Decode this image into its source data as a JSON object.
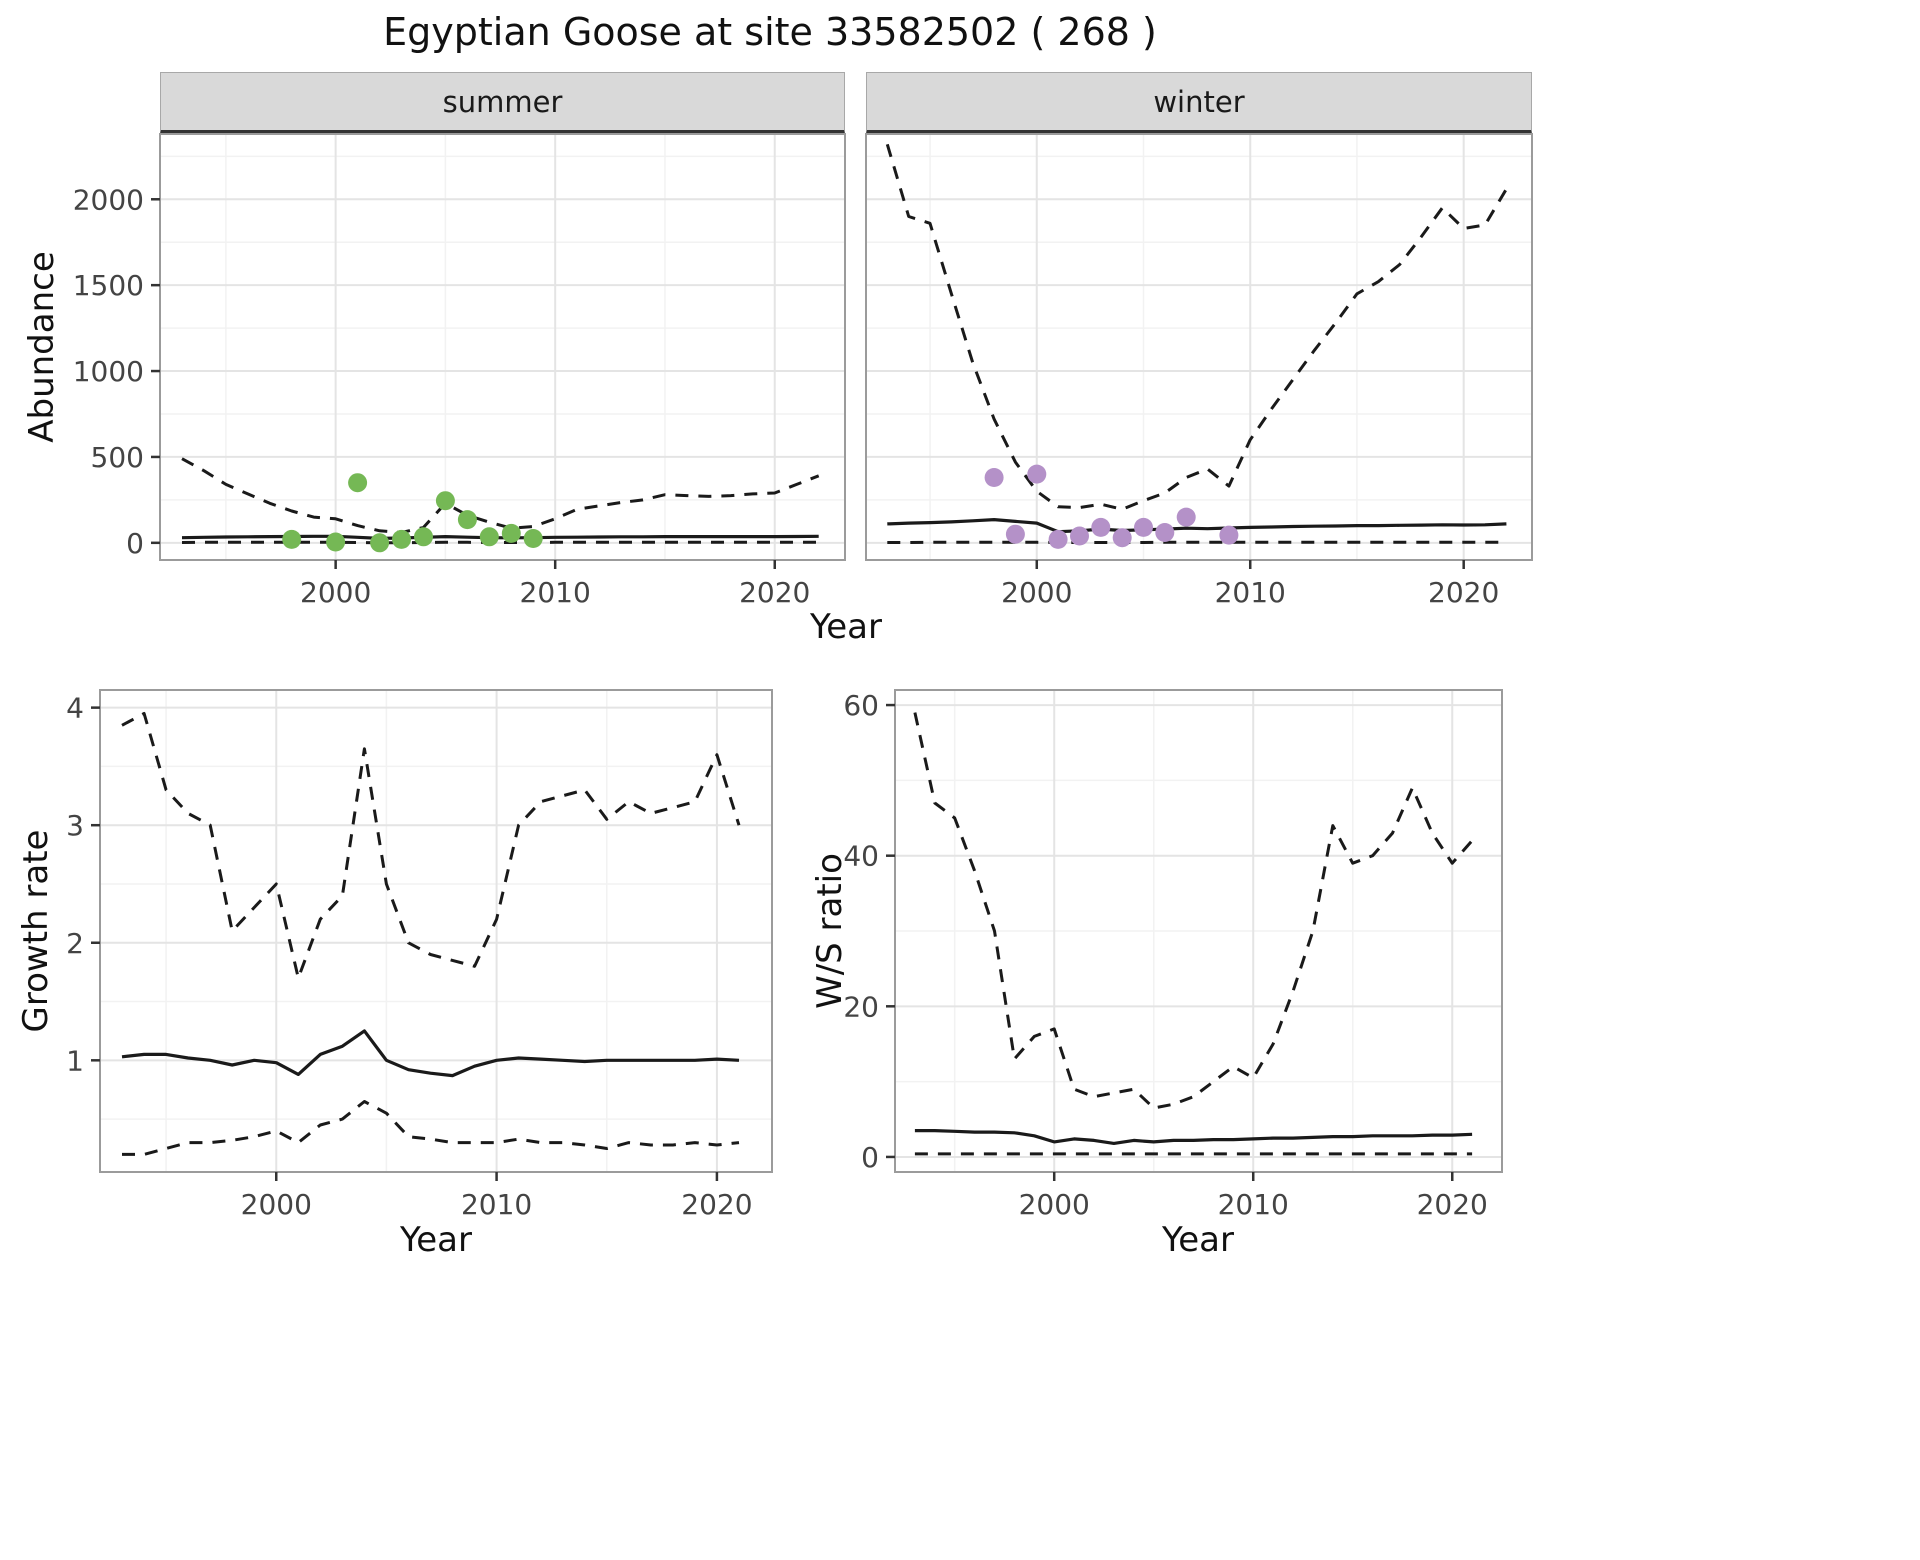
{
  "title": "Egyptian Goose at site 33582502 ( 268 )",
  "colors": {
    "line": "#1a1a1a",
    "grid_major": "#e4e4e4",
    "grid_minor": "#f2f2f2",
    "panel_border": "#9b9b9b",
    "tick_mark": "#333333",
    "strip_background": "#d9d9d9",
    "strip_underline": "#333333",
    "summer_points": "#75b855",
    "winter_points": "#b491c8"
  },
  "chart_data": [
    {
      "type": "line",
      "name": "abundance_by_season",
      "xlabel": "Year",
      "ylabel": "Abundance",
      "x": [
        1993,
        1994,
        1995,
        1996,
        1997,
        1998,
        1999,
        2000,
        2001,
        2002,
        2003,
        2004,
        2005,
        2006,
        2007,
        2008,
        2009,
        2010,
        2011,
        2012,
        2013,
        2014,
        2015,
        2016,
        2017,
        2018,
        2019,
        2020,
        2021,
        2022
      ],
      "xlim": [
        1992,
        2023.2
      ],
      "ylim": [
        -100,
        2380
      ],
      "xticks": [
        2000,
        2010,
        2020
      ],
      "yticks": [
        0,
        500,
        1000,
        1500,
        2000
      ],
      "grid": true,
      "legend": "none",
      "panels": [
        {
          "facet": "summer",
          "point_color": "#75b855",
          "series": [
            {
              "name": "upper_ci",
              "style": "dashed",
              "values": [
                490,
                420,
                340,
                285,
                230,
                185,
                150,
                140,
                100,
                70,
                60,
                90,
                230,
                160,
                120,
                85,
                95,
                140,
                195,
                215,
                235,
                250,
                280,
                275,
                270,
                275,
                285,
                290,
                340,
                390
              ]
            },
            {
              "name": "median",
              "style": "solid",
              "values": [
                30,
                32,
                34,
                35,
                36,
                37,
                38,
                38,
                32,
                26,
                28,
                32,
                36,
                33,
                30,
                29,
                30,
                32,
                33,
                34,
                35,
                35,
                36,
                36,
                36,
                36,
                36,
                36,
                37,
                38
              ]
            },
            {
              "name": "lower_ci",
              "style": "dashed",
              "values": [
                2,
                3,
                3,
                3,
                3,
                3,
                3,
                3,
                2,
                1,
                1,
                2,
                3,
                3,
                2,
                2,
                2,
                3,
                3,
                3,
                3,
                3,
                3,
                3,
                3,
                3,
                3,
                3,
                3,
                3
              ]
            }
          ],
          "points": {
            "name": "observed_counts",
            "x": [
              1998,
              2000,
              2001,
              2002,
              2003,
              2004,
              2005,
              2006,
              2007,
              2008,
              2009
            ],
            "y": [
              20,
              5,
              350,
              0,
              20,
              35,
              245,
              135,
              35,
              55,
              25
            ]
          }
        },
        {
          "facet": "winter",
          "point_color": "#b491c8",
          "series": [
            {
              "name": "upper_ci",
              "style": "dashed",
              "values": [
                2320,
                1900,
                1860,
                1450,
                1050,
                720,
                470,
                300,
                210,
                205,
                225,
                195,
                245,
                290,
                380,
                430,
                330,
                600,
                780,
                950,
                1120,
                1280,
                1450,
                1520,
                1620,
                1780,
                1950,
                1830,
                1850,
                2060
              ]
            },
            {
              "name": "median",
              "style": "solid",
              "values": [
                110,
                115,
                118,
                122,
                128,
                135,
                125,
                115,
                65,
                70,
                80,
                72,
                76,
                80,
                85,
                82,
                86,
                90,
                92,
                95,
                97,
                98,
                100,
                100,
                102,
                103,
                105,
                104,
                105,
                110
              ]
            },
            {
              "name": "lower_ci",
              "style": "dashed",
              "values": [
                2,
                2,
                3,
                3,
                3,
                3,
                3,
                3,
                2,
                2,
                2,
                2,
                2,
                3,
                3,
                3,
                3,
                3,
                3,
                3,
                3,
                3,
                3,
                3,
                3,
                3,
                3,
                3,
                3,
                3
              ]
            }
          ],
          "points": {
            "name": "observed_counts",
            "x": [
              1998,
              1999,
              2000,
              2001,
              2002,
              2003,
              2004,
              2005,
              2006,
              2007,
              2009
            ],
            "y": [
              380,
              50,
              400,
              20,
              40,
              90,
              30,
              90,
              60,
              150,
              45
            ]
          }
        }
      ]
    },
    {
      "type": "line",
      "name": "growth_rate",
      "xlabel": "Year",
      "ylabel": "Growth rate",
      "x": [
        1993,
        1994,
        1995,
        1996,
        1997,
        1998,
        1999,
        2000,
        2001,
        2002,
        2003,
        2004,
        2005,
        2006,
        2007,
        2008,
        2009,
        2010,
        2011,
        2012,
        2013,
        2014,
        2015,
        2016,
        2017,
        2018,
        2019,
        2020,
        2021
      ],
      "xlim": [
        1992,
        2022.5
      ],
      "ylim": [
        0.05,
        4.15
      ],
      "xticks": [
        2000,
        2010,
        2020
      ],
      "yticks": [
        1,
        2,
        3,
        4
      ],
      "grid": true,
      "legend": "none",
      "series": [
        {
          "name": "upper_ci",
          "style": "dashed",
          "values": [
            3.85,
            3.95,
            3.3,
            3.1,
            3.0,
            2.1,
            2.3,
            2.5,
            1.7,
            2.2,
            2.4,
            3.65,
            2.5,
            2.0,
            1.9,
            1.85,
            1.8,
            2.2,
            3.0,
            3.2,
            3.25,
            3.3,
            3.05,
            3.2,
            3.1,
            3.15,
            3.2,
            3.6,
            3.0
          ]
        },
        {
          "name": "median",
          "style": "solid",
          "values": [
            1.03,
            1.05,
            1.05,
            1.02,
            1.0,
            0.96,
            1.0,
            0.98,
            0.88,
            1.05,
            1.12,
            1.25,
            1.0,
            0.92,
            0.89,
            0.87,
            0.95,
            1.0,
            1.02,
            1.01,
            1.0,
            0.99,
            1.0,
            1.0,
            1.0,
            1.0,
            1.0,
            1.01,
            1.0
          ]
        },
        {
          "name": "lower_ci",
          "style": "dashed",
          "values": [
            0.2,
            0.2,
            0.25,
            0.3,
            0.3,
            0.32,
            0.35,
            0.4,
            0.3,
            0.45,
            0.5,
            0.65,
            0.55,
            0.35,
            0.33,
            0.3,
            0.3,
            0.3,
            0.33,
            0.3,
            0.3,
            0.28,
            0.25,
            0.3,
            0.28,
            0.28,
            0.3,
            0.28,
            0.3
          ]
        }
      ]
    },
    {
      "type": "line",
      "name": "ws_ratio",
      "xlabel": "Year",
      "ylabel": "W/S ratio",
      "x": [
        1993,
        1994,
        1995,
        1996,
        1997,
        1998,
        1999,
        2000,
        2001,
        2002,
        2003,
        2004,
        2005,
        2006,
        2007,
        2008,
        2009,
        2010,
        2011,
        2012,
        2013,
        2014,
        2015,
        2016,
        2017,
        2018,
        2019,
        2020,
        2021
      ],
      "xlim": [
        1992,
        2022.5
      ],
      "ylim": [
        -2,
        62
      ],
      "xticks": [
        2000,
        2010,
        2020
      ],
      "yticks": [
        0,
        20,
        40,
        60
      ],
      "grid": true,
      "legend": "none",
      "series": [
        {
          "name": "upper_ci",
          "style": "dashed",
          "values": [
            59,
            47,
            45,
            38,
            30,
            13,
            16,
            17,
            9,
            8,
            8.5,
            9,
            6.5,
            7,
            8,
            10,
            12,
            10.5,
            15,
            22,
            30,
            44,
            39,
            40,
            43,
            49,
            43,
            39,
            42
          ]
        },
        {
          "name": "median",
          "style": "solid",
          "values": [
            3.5,
            3.5,
            3.4,
            3.3,
            3.3,
            3.2,
            2.8,
            2.0,
            2.4,
            2.2,
            1.8,
            2.2,
            2.0,
            2.2,
            2.2,
            2.3,
            2.3,
            2.4,
            2.5,
            2.5,
            2.6,
            2.7,
            2.7,
            2.8,
            2.8,
            2.8,
            2.9,
            2.9,
            3.0
          ]
        },
        {
          "name": "lower_ci",
          "style": "dashed",
          "values": [
            0.4,
            0.4,
            0.4,
            0.4,
            0.4,
            0.4,
            0.4,
            0.4,
            0.4,
            0.4,
            0.4,
            0.4,
            0.4,
            0.4,
            0.4,
            0.4,
            0.4,
            0.4,
            0.4,
            0.4,
            0.4,
            0.4,
            0.4,
            0.4,
            0.4,
            0.4,
            0.4,
            0.4,
            0.4
          ]
        }
      ]
    }
  ]
}
